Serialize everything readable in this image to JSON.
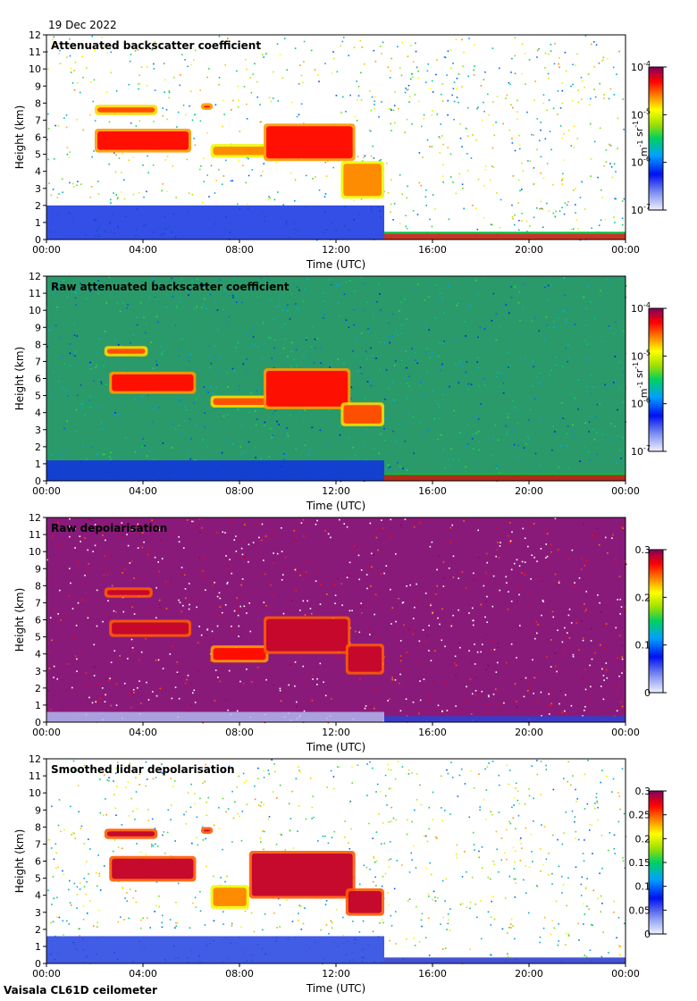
{
  "date_label": "19 Dec 2022",
  "footer": "Vaisala CL61D ceilometer",
  "chart_data": [
    {
      "type": "heatmap",
      "title": "Attenuated backscatter coefficient",
      "xlabel": "Time (UTC)",
      "ylabel": "Height (km)",
      "xticks": [
        "00:00",
        "04:00",
        "08:00",
        "12:00",
        "16:00",
        "20:00",
        "00:00"
      ],
      "yticks": [
        "0",
        "1",
        "2",
        "3",
        "4",
        "5",
        "6",
        "7",
        "8",
        "9",
        "10",
        "11",
        "12"
      ],
      "xlim_hours": [
        0,
        24
      ],
      "ylim_km": [
        0,
        12
      ],
      "colorbar": {
        "scale": "log",
        "range": [
          1e-07,
          0.0001
        ],
        "ticks": [
          {
            "base": "10",
            "exp": "-7"
          },
          {
            "base": "10",
            "exp": "-6"
          },
          {
            "base": "10",
            "exp": "-5"
          },
          {
            "base": "10",
            "exp": "-4"
          }
        ],
        "unit_parts": [
          {
            "t": "m",
            "e": "-1"
          },
          {
            "t": " sr",
            "e": "-1"
          }
        ]
      },
      "background_color": "#ffffff",
      "noise_top_km": 12,
      "boundary_layer": {
        "top_km": 2.0,
        "color": "#1030e0"
      },
      "clouds": [
        {
          "t0": 2.0,
          "t1": 4.6,
          "h0": 7.3,
          "h1": 7.9,
          "v": 0.85
        },
        {
          "t0": 6.4,
          "t1": 6.9,
          "h0": 7.6,
          "h1": 8.0,
          "v": 0.9
        },
        {
          "t0": 2.0,
          "t1": 6.0,
          "h0": 5.1,
          "h1": 6.5,
          "v": 0.9
        },
        {
          "t0": 6.8,
          "t1": 9.6,
          "h0": 4.8,
          "h1": 5.6,
          "v": 0.8
        },
        {
          "t0": 9.0,
          "t1": 12.8,
          "h0": 4.6,
          "h1": 6.8,
          "v": 0.9
        },
        {
          "t0": 12.2,
          "t1": 14.0,
          "h0": 2.4,
          "h1": 4.6,
          "v": 0.8
        }
      ]
    },
    {
      "type": "heatmap",
      "title": "Raw attenuated backscatter coefficient",
      "xlabel": "Time (UTC)",
      "ylabel": "Height (km)",
      "xticks": [
        "00:00",
        "04:00",
        "08:00",
        "12:00",
        "16:00",
        "20:00",
        "00:00"
      ],
      "yticks": [
        "0",
        "1",
        "2",
        "3",
        "4",
        "5",
        "6",
        "7",
        "8",
        "9",
        "10",
        "11",
        "12"
      ],
      "xlim_hours": [
        0,
        24
      ],
      "ylim_km": [
        0,
        12
      ],
      "colorbar": {
        "scale": "log",
        "range": [
          1e-07,
          0.0001
        ],
        "ticks": [
          {
            "base": "10",
            "exp": "-7"
          },
          {
            "base": "10",
            "exp": "-6"
          },
          {
            "base": "10",
            "exp": "-5"
          },
          {
            "base": "10",
            "exp": "-4"
          }
        ],
        "unit_parts": [
          {
            "t": "m",
            "e": "-1"
          },
          {
            "t": " sr",
            "e": "-1"
          }
        ]
      },
      "background_color": "#2a9a6a",
      "noise_top_km": 12,
      "boundary_layer": {
        "top_km": 1.2,
        "color": "#1030e0"
      },
      "clouds": [
        {
          "t0": 2.4,
          "t1": 4.2,
          "h0": 7.3,
          "h1": 7.9,
          "v": 0.85
        },
        {
          "t0": 2.6,
          "t1": 6.2,
          "h0": 5.1,
          "h1": 6.4,
          "v": 0.9
        },
        {
          "t0": 6.8,
          "t1": 9.4,
          "h0": 4.3,
          "h1": 5.0,
          "v": 0.85
        },
        {
          "t0": 9.0,
          "t1": 12.6,
          "h0": 4.2,
          "h1": 6.6,
          "v": 0.9
        },
        {
          "t0": 12.2,
          "t1": 14.0,
          "h0": 3.2,
          "h1": 4.6,
          "v": 0.85
        }
      ]
    },
    {
      "type": "heatmap",
      "title": "Raw depolarisation",
      "xlabel": "Time (UTC)",
      "ylabel": "Height (km)",
      "xticks": [
        "00:00",
        "04:00",
        "08:00",
        "12:00",
        "16:00",
        "20:00",
        "00:00"
      ],
      "yticks": [
        "0",
        "1",
        "2",
        "3",
        "4",
        "5",
        "6",
        "7",
        "8",
        "9",
        "10",
        "11",
        "12"
      ],
      "xlim_hours": [
        0,
        24
      ],
      "ylim_km": [
        0,
        12
      ],
      "colorbar": {
        "scale": "linear",
        "range": [
          0,
          0.3
        ],
        "ticks": [
          {
            "base": "0"
          },
          {
            "base": "0.1"
          },
          {
            "base": "0.2"
          },
          {
            "base": "0.3"
          }
        ],
        "unit_parts": []
      },
      "background_color": "#8a1a7a",
      "noise_top_km": 12,
      "boundary_layer": {
        "top_km": 0.6,
        "color": "#b0b8f0"
      },
      "clouds": [
        {
          "t0": 2.4,
          "t1": 4.4,
          "h0": 7.3,
          "h1": 7.9,
          "v": 0.95
        },
        {
          "t0": 2.6,
          "t1": 6.0,
          "h0": 5.0,
          "h1": 6.0,
          "v": 0.95
        },
        {
          "t0": 6.8,
          "t1": 9.2,
          "h0": 3.5,
          "h1": 4.5,
          "v": 0.9
        },
        {
          "t0": 9.0,
          "t1": 12.6,
          "h0": 4.0,
          "h1": 6.2,
          "v": 0.95
        },
        {
          "t0": 12.4,
          "t1": 14.0,
          "h0": 2.8,
          "h1": 4.6,
          "v": 0.95
        }
      ]
    },
    {
      "type": "heatmap",
      "title": "Smoothed lidar depolarisation",
      "xlabel": "Time (UTC)",
      "ylabel": "Height (km)",
      "xticks": [
        "00:00",
        "04:00",
        "08:00",
        "12:00",
        "16:00",
        "20:00",
        "00:00"
      ],
      "yticks": [
        "0",
        "1",
        "2",
        "3",
        "4",
        "5",
        "6",
        "7",
        "8",
        "9",
        "10",
        "11",
        "12"
      ],
      "xlim_hours": [
        0,
        24
      ],
      "ylim_km": [
        0,
        12
      ],
      "colorbar": {
        "scale": "linear",
        "range": [
          0,
          0.3
        ],
        "ticks": [
          {
            "base": "0"
          },
          {
            "base": "0.05"
          },
          {
            "base": "0.1"
          },
          {
            "base": "0.15"
          },
          {
            "base": "0.2"
          },
          {
            "base": "0.25"
          },
          {
            "base": "0.3"
          }
        ],
        "unit_parts": []
      },
      "background_color": "#ffffff",
      "noise_top_km": 12,
      "boundary_layer": {
        "top_km": 1.6,
        "color": "#2040e0"
      },
      "clouds": [
        {
          "t0": 2.4,
          "t1": 4.6,
          "h0": 7.3,
          "h1": 7.9,
          "v": 0.95
        },
        {
          "t0": 6.4,
          "t1": 6.9,
          "h0": 7.6,
          "h1": 8.0,
          "v": 0.95
        },
        {
          "t0": 2.6,
          "t1": 6.2,
          "h0": 4.8,
          "h1": 6.3,
          "v": 0.95
        },
        {
          "t0": 6.8,
          "t1": 8.4,
          "h0": 3.2,
          "h1": 4.6,
          "v": 0.8
        },
        {
          "t0": 8.4,
          "t1": 12.8,
          "h0": 3.8,
          "h1": 6.6,
          "v": 0.95
        },
        {
          "t0": 12.4,
          "t1": 14.0,
          "h0": 2.8,
          "h1": 4.4,
          "v": 0.95
        }
      ]
    }
  ]
}
